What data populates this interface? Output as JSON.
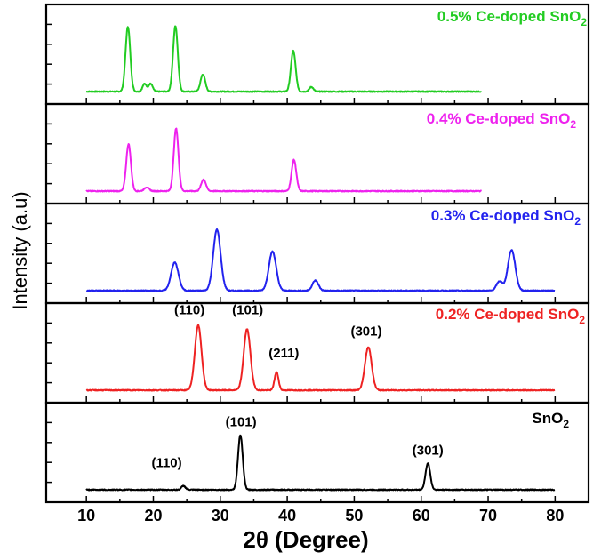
{
  "chart_data": {
    "type": "line",
    "title": "",
    "xlabel": "2θ (Degree)",
    "ylabel": "Intensity (a.u)",
    "xlim": [
      4,
      85
    ],
    "x_ticks": [
      "10",
      "20",
      "30",
      "40",
      "50",
      "60",
      "70",
      "80"
    ],
    "grid": false,
    "stacked_panels": true,
    "panels": [
      {
        "name_prefix": "0.5% Ce-doped SnO",
        "name_sub": "2",
        "color": "#22cc22",
        "x_range": [
          10,
          69
        ],
        "peaks": [
          {
            "x": 16.2,
            "h": 0.83,
            "w": 0.35
          },
          {
            "x": 18.7,
            "h": 0.1,
            "w": 0.3
          },
          {
            "x": 19.6,
            "h": 0.1,
            "w": 0.3
          },
          {
            "x": 23.3,
            "h": 0.84,
            "w": 0.35
          },
          {
            "x": 27.4,
            "h": 0.22,
            "w": 0.35
          },
          {
            "x": 40.9,
            "h": 0.52,
            "w": 0.35
          },
          {
            "x": 43.6,
            "h": 0.06,
            "w": 0.3
          }
        ],
        "peak_labels": []
      },
      {
        "name_prefix": "0.4% Ce-doped SnO",
        "name_sub": "2",
        "color": "#ee22ee",
        "x_range": [
          10,
          69
        ],
        "peaks": [
          {
            "x": 16.3,
            "h": 0.6,
            "w": 0.35
          },
          {
            "x": 19.0,
            "h": 0.05,
            "w": 0.35
          },
          {
            "x": 23.4,
            "h": 0.8,
            "w": 0.35
          },
          {
            "x": 27.5,
            "h": 0.15,
            "w": 0.35
          },
          {
            "x": 41.0,
            "h": 0.4,
            "w": 0.35
          }
        ],
        "peak_labels": []
      },
      {
        "name_prefix": "0.3% Ce-doped SnO",
        "name_sub": "2",
        "color": "#2222ee",
        "x_range": [
          10,
          80
        ],
        "peaks": [
          {
            "x": 23.2,
            "h": 0.36,
            "w": 0.55
          },
          {
            "x": 29.5,
            "h": 0.78,
            "w": 0.55
          },
          {
            "x": 37.8,
            "h": 0.5,
            "w": 0.55
          },
          {
            "x": 44.2,
            "h": 0.13,
            "w": 0.45
          },
          {
            "x": 71.7,
            "h": 0.12,
            "w": 0.45
          },
          {
            "x": 73.5,
            "h": 0.52,
            "w": 0.55
          }
        ],
        "peak_labels": []
      },
      {
        "name_prefix": "0.2% Ce-doped SnO",
        "name_sub": "2",
        "color": "#ee2222",
        "x_range": [
          10,
          80
        ],
        "peaks": [
          {
            "x": 26.7,
            "h": 0.83,
            "w": 0.5
          },
          {
            "x": 34.0,
            "h": 0.78,
            "w": 0.5
          },
          {
            "x": 38.4,
            "h": 0.23,
            "w": 0.3
          },
          {
            "x": 52.1,
            "h": 0.55,
            "w": 0.5
          }
        ],
        "peak_labels": [
          {
            "text": "(110)",
            "x": 25.4,
            "y": 0.97
          },
          {
            "text": "(101)",
            "x": 34.1,
            "y": 0.97
          },
          {
            "text": "(211)",
            "x": 39.5,
            "y": 0.42
          },
          {
            "text": "(301)",
            "x": 51.8,
            "y": 0.7
          }
        ]
      },
      {
        "name_prefix": "SnO",
        "name_sub": "2",
        "color": "#000000",
        "x_range": [
          10,
          80
        ],
        "peaks": [
          {
            "x": 24.5,
            "h": 0.05,
            "w": 0.3
          },
          {
            "x": 33.0,
            "h": 0.7,
            "w": 0.35
          },
          {
            "x": 61.0,
            "h": 0.34,
            "w": 0.35
          }
        ],
        "peak_labels": [
          {
            "text": "(110)",
            "x": 22.0,
            "y": 0.29
          },
          {
            "text": "(101)",
            "x": 33.1,
            "y": 0.81
          },
          {
            "text": "(301)",
            "x": 61.0,
            "y": 0.45
          }
        ]
      }
    ]
  }
}
